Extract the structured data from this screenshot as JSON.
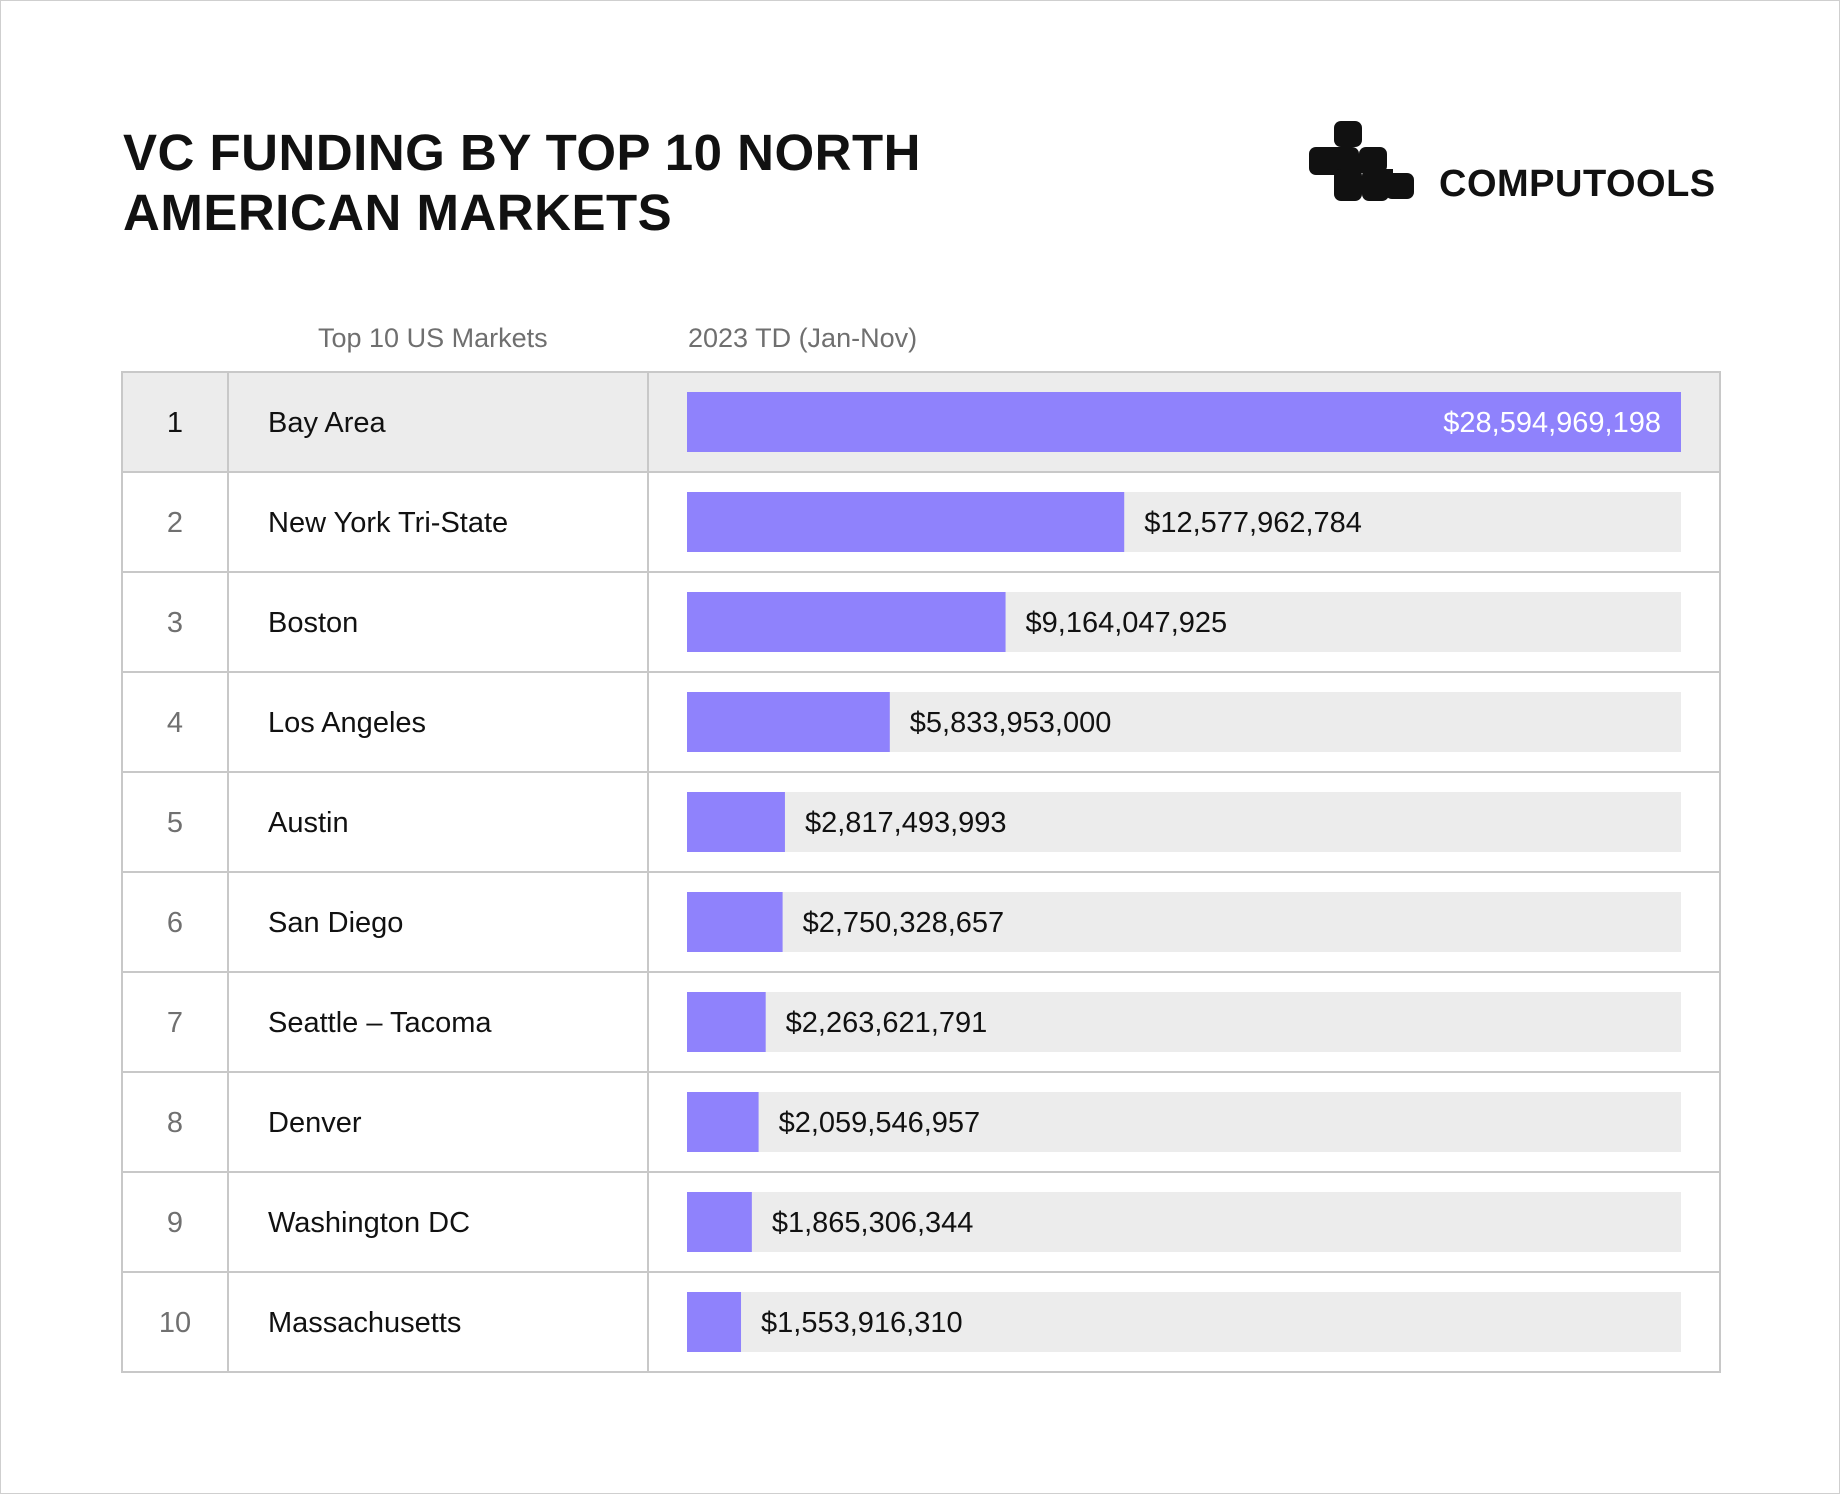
{
  "title_lines": [
    "VC FUNDING BY TOP 10 NORTH",
    "AMERICAN MARKETS"
  ],
  "logo": {
    "text": "COMPUTOOLS",
    "icon": "computools-logo-icon"
  },
  "columns": {
    "market": "Top 10 US Markets",
    "value": "2023 TD (Jan-Nov)"
  },
  "colors": {
    "bar": "#8f82fc",
    "track": "#ececec",
    "highlight_row": "#ececec",
    "grid": "#c8c8c8",
    "text": "#111111",
    "muted": "#707070"
  },
  "chart_data": {
    "type": "bar",
    "orientation": "horizontal",
    "title": "VC FUNDING BY TOP 10 NORTH AMERICAN MARKETS",
    "xlabel": "2023 TD (Jan-Nov)",
    "ylabel": "Top 10 US Markets",
    "xlim": [
      0,
      28594969198
    ],
    "categories": [
      "Bay Area",
      "New York Tri-State",
      "Boston",
      "Los Angeles",
      "Austin",
      "San Diego",
      "Seattle – Tacoma",
      "Denver",
      "Washington DC",
      "Massachusetts"
    ],
    "ranks": [
      "1",
      "2",
      "3",
      "4",
      "5",
      "6",
      "7",
      "8",
      "9",
      "10"
    ],
    "values": [
      28594969198,
      12577962784,
      9164047925,
      5833953000,
      2817493993,
      2750328657,
      2263621791,
      2059546957,
      1865306344,
      1553916310
    ],
    "labels": [
      "$28,594,969,198",
      "$12,577,962,784",
      "$9,164,047,925",
      "$5,833,953,000",
      "$2,817,493,993",
      "$2,750,328,657",
      "$2,263,621,791",
      "$2,059,546,957",
      "$1,865,306,344",
      "$1,553,916,310"
    ],
    "highlight_index": 0
  }
}
